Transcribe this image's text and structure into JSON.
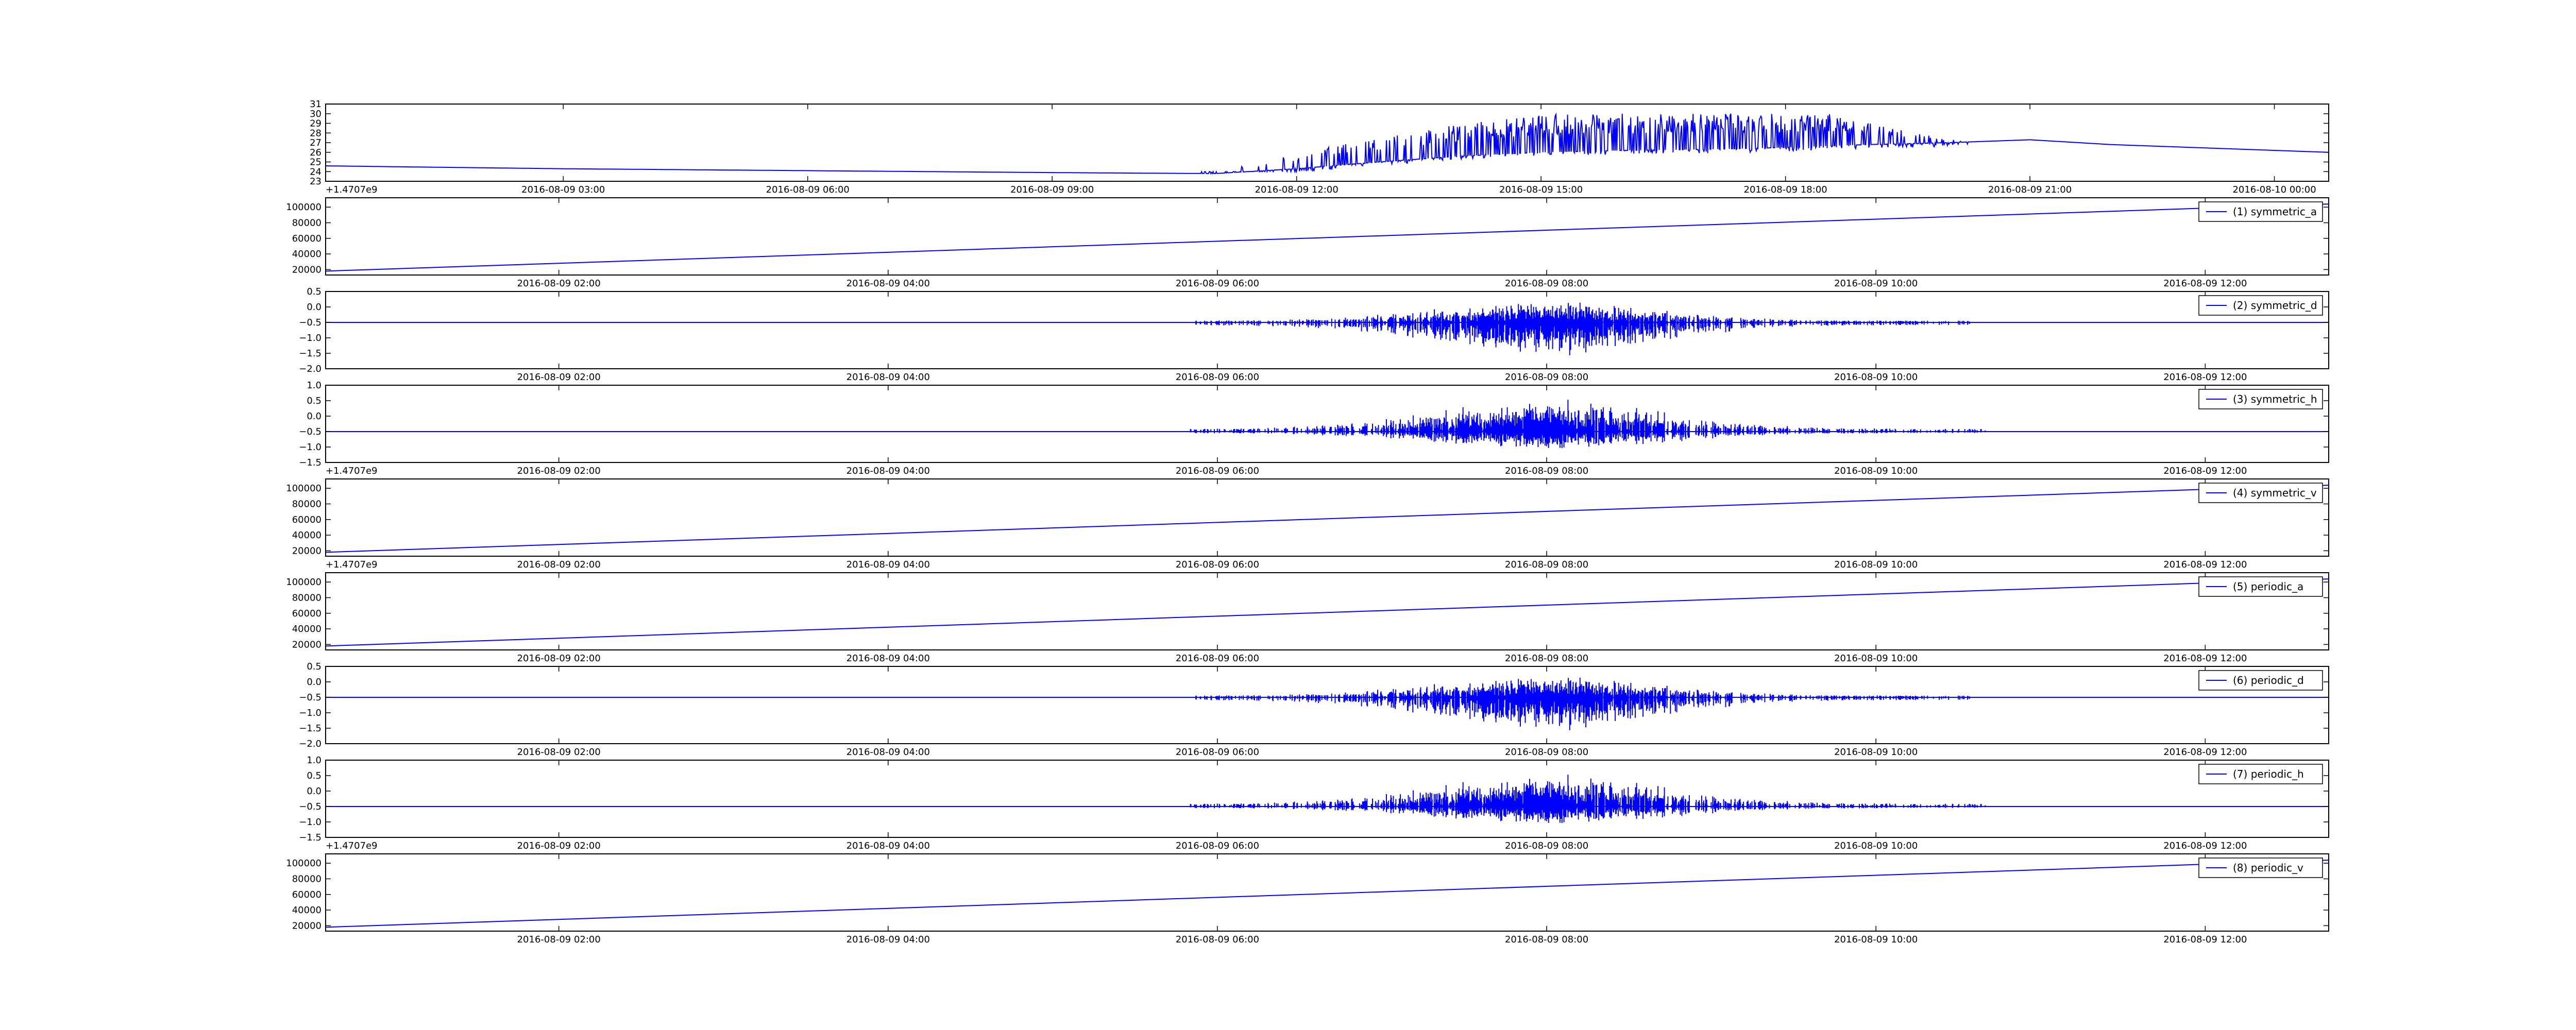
{
  "chart_data": [
    {
      "type": "line",
      "title": "",
      "xlabel": "",
      "ylabel": "",
      "x_ticks": [
        "2016-08-09 03:00",
        "2016-08-09 06:00",
        "2016-08-09 09:00",
        "2016-08-09 12:00",
        "2016-08-09 15:00",
        "2016-08-09 18:00",
        "2016-08-09 21:00",
        "2016-08-10 00:00"
      ],
      "x_range": [
        "2016-08-09 00:05",
        "2016-08-10 00:40"
      ],
      "y_ticks": [
        "23",
        "24",
        "25",
        "26",
        "27",
        "28",
        "29",
        "30",
        "31"
      ],
      "ylim": [
        23,
        31
      ],
      "offset_text": "+1.4707e9",
      "legend": null,
      "series_color": "#0000ff",
      "series": [
        {
          "name": "",
          "x": [
            "2016-08-09 00:05",
            "2016-08-09 01:00",
            "2016-08-09 03:00",
            "2016-08-09 06:00",
            "2016-08-09 09:00",
            "2016-08-09 11:00",
            "2016-08-09 12:00",
            "2016-08-09 13:00",
            "2016-08-09 14:00",
            "2016-08-09 15:00",
            "2016-08-09 16:00",
            "2016-08-09 17:00",
            "2016-08-09 18:00",
            "2016-08-09 19:00",
            "2016-08-09 20:00",
            "2016-08-09 21:00",
            "2016-08-09 22:00",
            "2016-08-10 00:40"
          ],
          "y": [
            24.6,
            24.5,
            24.3,
            24.1,
            23.9,
            23.8,
            24.3,
            25.0,
            25.6,
            26.0,
            26.2,
            26.3,
            26.5,
            26.8,
            27.0,
            27.3,
            26.8,
            26.0
          ],
          "fluctuation": {
            "start": "2016-08-09 10:50",
            "end": "2016-08-09 20:15",
            "min": 24.0,
            "max": 30.0
          }
        }
      ]
    },
    {
      "type": "line",
      "title": "",
      "xlabel": "",
      "ylabel": "",
      "x_ticks": [
        "2016-08-09 02:00",
        "2016-08-09 04:00",
        "2016-08-09 06:00",
        "2016-08-09 08:00",
        "2016-08-09 10:00",
        "2016-08-09 12:00"
      ],
      "x_range": [
        "2016-08-09 00:35",
        "2016-08-09 12:45"
      ],
      "y_ticks": [
        "20000",
        "40000",
        "60000",
        "80000",
        "100000"
      ],
      "ylim": [
        13000,
        112000
      ],
      "offset_text": "",
      "legend": "(1) symmetric_a",
      "legend_loc": "upper right",
      "series_color": "#0000ff",
      "series": [
        {
          "name": "(1) symmetric_a",
          "x": [
            "2016-08-09 00:35",
            "2016-08-09 12:45"
          ],
          "y": [
            18000,
            104000
          ]
        }
      ]
    },
    {
      "type": "line",
      "title": "",
      "xlabel": "",
      "ylabel": "",
      "x_ticks": [
        "2016-08-09 02:00",
        "2016-08-09 04:00",
        "2016-08-09 06:00",
        "2016-08-09 08:00",
        "2016-08-09 10:00",
        "2016-08-09 12:00"
      ],
      "x_range": [
        "2016-08-09 00:35",
        "2016-08-09 12:45"
      ],
      "y_ticks": [
        "−2.0",
        "−1.5",
        "−1.0",
        "−0.5",
        "0.0",
        "0.5"
      ],
      "ylim": [
        -2.0,
        0.5
      ],
      "offset_text": "",
      "legend": "(2) symmetric_d",
      "legend_loc": "upper right",
      "series_color": "#0000ff",
      "series": [
        {
          "name": "(2) symmetric_d",
          "baseline": -0.5,
          "fluctuation": {
            "start": "2016-08-09 05:50",
            "end": "2016-08-09 10:35",
            "min": -1.6,
            "max": 0.2
          }
        }
      ]
    },
    {
      "type": "line",
      "title": "",
      "xlabel": "",
      "ylabel": "",
      "x_ticks": [
        "2016-08-09 02:00",
        "2016-08-09 04:00",
        "2016-08-09 06:00",
        "2016-08-09 08:00",
        "2016-08-09 10:00",
        "2016-08-09 12:00"
      ],
      "x_range": [
        "2016-08-09 00:35",
        "2016-08-09 12:45"
      ],
      "y_ticks": [
        "−1.5",
        "−1.0",
        "−0.5",
        "0.0",
        "0.5",
        "1.0"
      ],
      "ylim": [
        -1.5,
        1.0
      ],
      "offset_text": "+1.4707e9",
      "legend": "(3) symmetric_h",
      "legend_loc": "upper right",
      "series_color": "#0000ff",
      "series": [
        {
          "name": "(3) symmetric_h",
          "baseline": -0.5,
          "fluctuation": {
            "start": "2016-08-09 05:50",
            "end": "2016-08-09 10:40",
            "min": -1.1,
            "max": 0.6
          }
        }
      ]
    },
    {
      "type": "line",
      "title": "",
      "xlabel": "",
      "ylabel": "",
      "x_ticks": [
        "2016-08-09 02:00",
        "2016-08-09 04:00",
        "2016-08-09 06:00",
        "2016-08-09 08:00",
        "2016-08-09 10:00",
        "2016-08-09 12:00"
      ],
      "x_range": [
        "2016-08-09 00:35",
        "2016-08-09 12:45"
      ],
      "y_ticks": [
        "20000",
        "40000",
        "60000",
        "80000",
        "100000"
      ],
      "ylim": [
        13000,
        112000
      ],
      "offset_text": "+1.4707e9",
      "legend": "(4) symmetric_v",
      "legend_loc": "upper right",
      "series_color": "#0000ff",
      "series": [
        {
          "name": "(4) symmetric_v",
          "x": [
            "2016-08-09 00:35",
            "2016-08-09 12:45"
          ],
          "y": [
            18000,
            104000
          ]
        }
      ]
    },
    {
      "type": "line",
      "title": "",
      "xlabel": "",
      "ylabel": "",
      "x_ticks": [
        "2016-08-09 02:00",
        "2016-08-09 04:00",
        "2016-08-09 06:00",
        "2016-08-09 08:00",
        "2016-08-09 10:00",
        "2016-08-09 12:00"
      ],
      "x_range": [
        "2016-08-09 00:35",
        "2016-08-09 12:45"
      ],
      "y_ticks": [
        "20000",
        "40000",
        "60000",
        "80000",
        "100000"
      ],
      "ylim": [
        13000,
        112000
      ],
      "offset_text": "",
      "legend": "(5) periodic_a",
      "legend_loc": "upper right",
      "series_color": "#0000ff",
      "series": [
        {
          "name": "(5) periodic_a",
          "x": [
            "2016-08-09 00:35",
            "2016-08-09 12:45"
          ],
          "y": [
            18000,
            104000
          ]
        }
      ]
    },
    {
      "type": "line",
      "title": "",
      "xlabel": "",
      "ylabel": "",
      "x_ticks": [
        "2016-08-09 02:00",
        "2016-08-09 04:00",
        "2016-08-09 06:00",
        "2016-08-09 08:00",
        "2016-08-09 10:00",
        "2016-08-09 12:00"
      ],
      "x_range": [
        "2016-08-09 00:35",
        "2016-08-09 12:45"
      ],
      "y_ticks": [
        "−2.0",
        "−1.5",
        "−1.0",
        "−0.5",
        "0.0",
        "0.5"
      ],
      "ylim": [
        -2.0,
        0.5
      ],
      "offset_text": "",
      "legend": "(6) periodic_d",
      "legend_loc": "upper right",
      "series_color": "#0000ff",
      "series": [
        {
          "name": "(6) periodic_d",
          "baseline": -0.5,
          "fluctuation": {
            "start": "2016-08-09 05:50",
            "end": "2016-08-09 10:35",
            "min": -1.6,
            "max": 0.2
          }
        }
      ]
    },
    {
      "type": "line",
      "title": "",
      "xlabel": "",
      "ylabel": "",
      "x_ticks": [
        "2016-08-09 02:00",
        "2016-08-09 04:00",
        "2016-08-09 06:00",
        "2016-08-09 08:00",
        "2016-08-09 10:00",
        "2016-08-09 12:00"
      ],
      "x_range": [
        "2016-08-09 00:35",
        "2016-08-09 12:45"
      ],
      "y_ticks": [
        "−1.5",
        "−1.0",
        "−0.5",
        "0.0",
        "0.5",
        "1.0"
      ],
      "ylim": [
        -1.5,
        1.0
      ],
      "offset_text": "+1.4707e9",
      "legend": "(7) periodic_h",
      "legend_loc": "upper right",
      "series_color": "#0000ff",
      "series": [
        {
          "name": "(7) periodic_h",
          "baseline": -0.5,
          "fluctuation": {
            "start": "2016-08-09 05:50",
            "end": "2016-08-09 10:40",
            "min": -1.1,
            "max": 0.6
          }
        }
      ]
    },
    {
      "type": "line",
      "title": "",
      "xlabel": "",
      "ylabel": "",
      "x_ticks": [
        "2016-08-09 02:00",
        "2016-08-09 04:00",
        "2016-08-09 06:00",
        "2016-08-09 08:00",
        "2016-08-09 10:00",
        "2016-08-09 12:00"
      ],
      "x_range": [
        "2016-08-09 00:35",
        "2016-08-09 12:45"
      ],
      "y_ticks": [
        "20000",
        "40000",
        "60000",
        "80000",
        "100000"
      ],
      "ylim": [
        13000,
        112000
      ],
      "offset_text": "",
      "legend": "(8) periodic_v",
      "legend_loc": "upper right",
      "series_color": "#0000ff",
      "series": [
        {
          "name": "(8) periodic_v",
          "x": [
            "2016-08-09 00:35",
            "2016-08-09 12:45"
          ],
          "y": [
            18000,
            104000
          ]
        }
      ]
    }
  ]
}
